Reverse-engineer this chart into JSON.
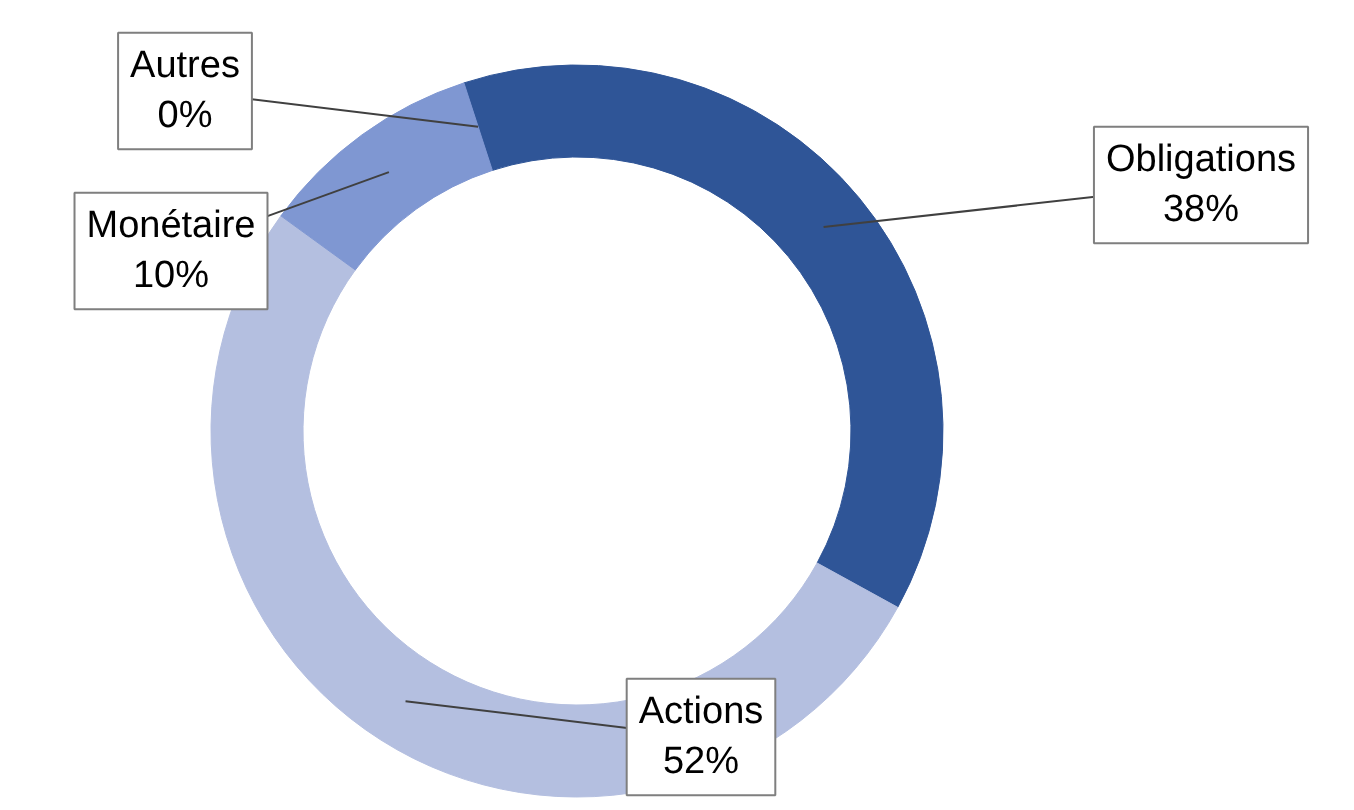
{
  "chart_data": {
    "type": "donut",
    "categories": [
      "Obligations",
      "Actions",
      "Monétaire",
      "Autres"
    ],
    "values": [
      38,
      52,
      10,
      0
    ],
    "colors": [
      "#2f5597",
      "#b4bfe0",
      "#7f97d2",
      "#4a6bb8"
    ],
    "value_labels": [
      "38%",
      "52%",
      "10%",
      "0%"
    ]
  }
}
